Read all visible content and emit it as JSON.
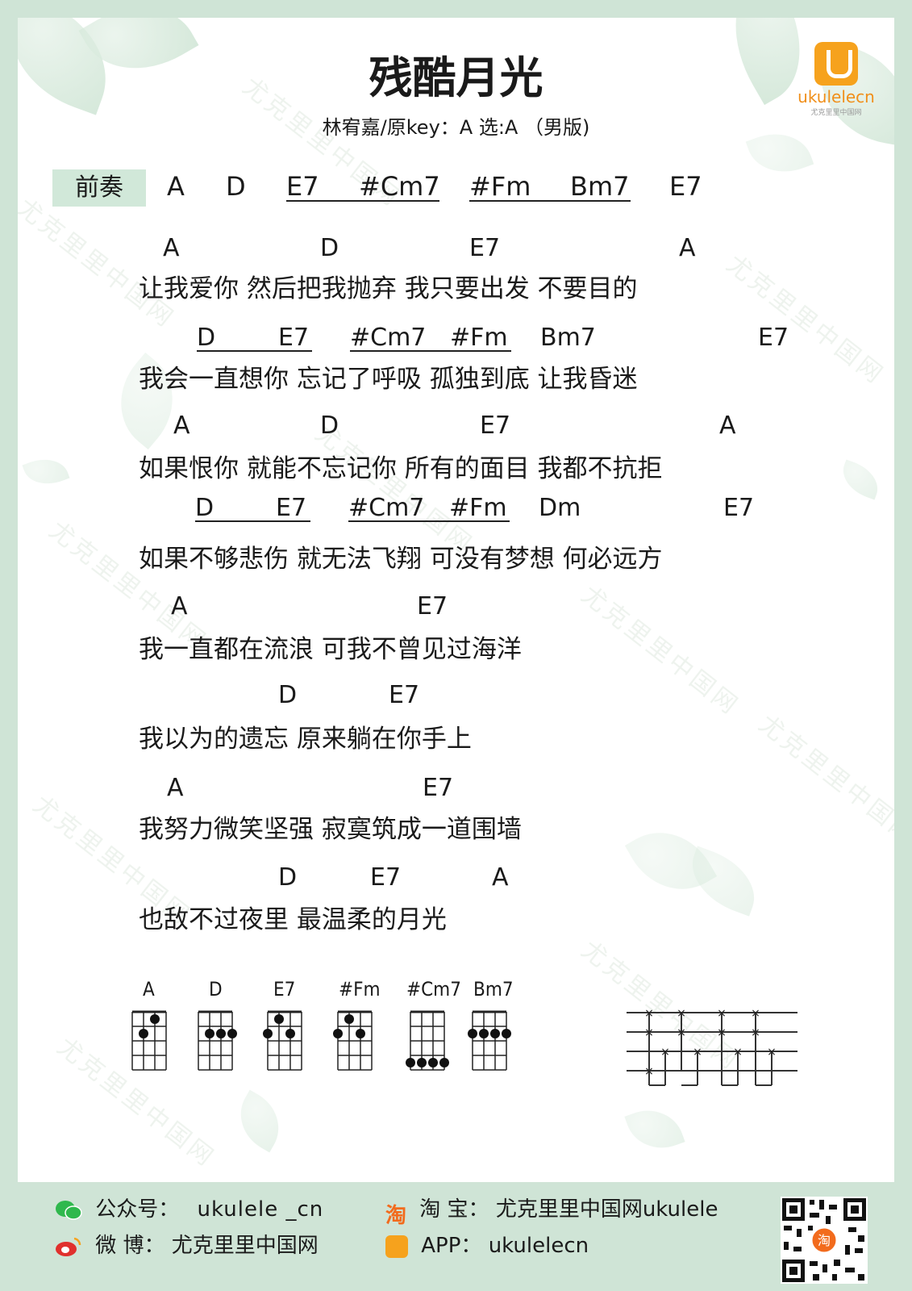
{
  "header": {
    "title": "残酷月光",
    "subtitle": "林宥嘉/原key：A  选:A （男版)",
    "logo_text": "ukulelecn",
    "logo_sub": "尤克里里中国网"
  },
  "watermark": "尤克里里中国网",
  "intro": {
    "label": "前奏",
    "chords": [
      "A",
      "D",
      "E7",
      "#Cm7",
      "#Fm",
      "Bm7",
      "E7"
    ]
  },
  "lines": [
    {
      "chords": [
        "A",
        "D",
        "E7",
        "A"
      ],
      "lyric": "让我爱你 然后把我抛弃   我只要出发 不要目的"
    },
    {
      "chords": [
        "D",
        "E7",
        "#Cm7",
        "#Fm",
        "Bm7",
        "E7"
      ],
      "lyric": "我会一直想你         忘记了呼吸      孤独到底   让我昏迷"
    },
    {
      "chords": [
        "A",
        "D",
        "E7",
        "A"
      ],
      "lyric": "如果恨你 就能不忘记你    所有的面目 我都不抗拒"
    },
    {
      "chords": [
        "D",
        "E7",
        "#Cm7",
        "#Fm",
        "Dm",
        "E7"
      ],
      "lyric": "如果不够悲伤       就无法飞翔     可没有梦想 何必远方"
    },
    {
      "chords": [
        "A",
        "E7"
      ],
      "lyric": "我一直都在流浪    可我不曾见过海洋"
    },
    {
      "chords": [
        "D",
        "E7"
      ],
      "lyric": "我以为的遗忘    原来躺在你手上"
    },
    {
      "chords": [
        "A",
        "E7"
      ],
      "lyric": "我努力微笑坚强     寂寞筑成一道围墙"
    },
    {
      "chords": [
        "D",
        "E7",
        "A"
      ],
      "lyric": "也敌不过夜里     最温柔的月光"
    }
  ],
  "chord_diagrams": [
    {
      "name": "A",
      "dots": [
        [
          2,
          1
        ],
        [
          1,
          2
        ]
      ]
    },
    {
      "name": "D",
      "dots": [
        [
          2,
          1
        ],
        [
          2,
          2
        ],
        [
          2,
          3
        ]
      ]
    },
    {
      "name": "E7",
      "dots": [
        [
          1,
          1
        ],
        [
          2,
          0
        ],
        [
          2,
          2
        ]
      ]
    },
    {
      "name": "#Fm",
      "dots": [
        [
          2,
          0
        ],
        [
          1,
          1
        ],
        [
          2,
          2
        ]
      ]
    },
    {
      "name": "#Cm7",
      "dots": [
        [
          4,
          0
        ],
        [
          4,
          1
        ],
        [
          4,
          2
        ],
        [
          4,
          3
        ]
      ]
    },
    {
      "name": "Bm7",
      "dots": [
        [
          2,
          0
        ],
        [
          2,
          1
        ],
        [
          2,
          2
        ],
        [
          2,
          3
        ]
      ]
    }
  ],
  "footer": {
    "wechat_label": "公众号：",
    "wechat_value": "ukulele _cn",
    "weibo_label": "微    博：",
    "weibo_value": "尤克里里中国网",
    "taobao_icon": "淘",
    "taobao_label": "淘    宝：",
    "taobao_value": "尤克里里中国网ukulele",
    "app_label": "APP：",
    "app_value": "ukulelecn",
    "qr_label": "淘"
  },
  "colors": {
    "background": "#cfe4d6",
    "tag": "#d1e8d9",
    "logo": "#f6a21d",
    "taobao": "#f26b1d",
    "wechat": "#2fb84d",
    "weibo": "#e0302d"
  }
}
